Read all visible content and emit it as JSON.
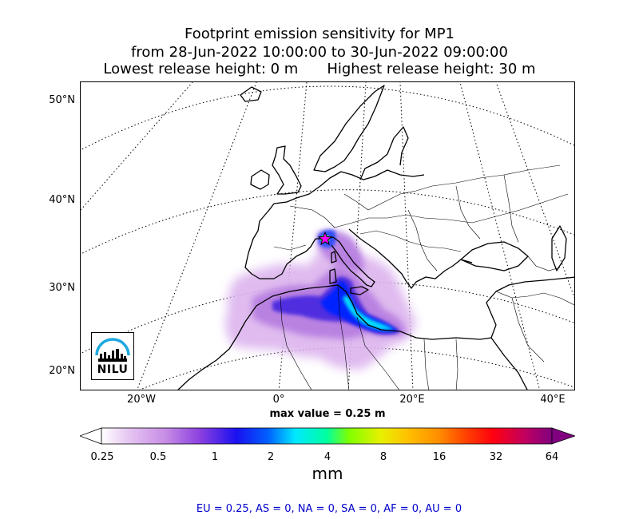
{
  "title": {
    "line1": "Footprint emission sensitivity for MP1",
    "line2": "from 28-Jun-2022 10:00:00 to 30-Jun-2022 09:00:00",
    "lowest": "Lowest release height: 0 m",
    "highest": "Highest release height: 30 m"
  },
  "axes": {
    "lat_labels": [
      "50°N",
      "40°N",
      "30°N",
      "20°N"
    ],
    "lon_labels": [
      "20°W",
      "0°",
      "20°E",
      "40°E"
    ]
  },
  "max_value_text": "max value = 0.25 m",
  "colorbar": {
    "ticks": [
      "0.25",
      "0.5",
      "1",
      "2",
      "4",
      "8",
      "16",
      "32",
      "64"
    ],
    "unit": "mm",
    "colors": [
      "#ffffff",
      "#d8a8e8",
      "#a855d9",
      "#6a2dd9",
      "#0000ff",
      "#0090ff",
      "#00ffff",
      "#00ff80",
      "#80ff00",
      "#ffff00",
      "#ffc000",
      "#ff8000",
      "#ff4000",
      "#ff0000",
      "#d00050",
      "#800080"
    ]
  },
  "stats_text": "EU = 0.25,  AS = 0,  NA = 0,  SA = 0,  AF = 0,  AU = 0",
  "logo": {
    "text": "NILU",
    "icon": "nilu-logo-icon"
  },
  "release_marker": {
    "icon": "star-icon",
    "color": "#ff00ff"
  }
}
